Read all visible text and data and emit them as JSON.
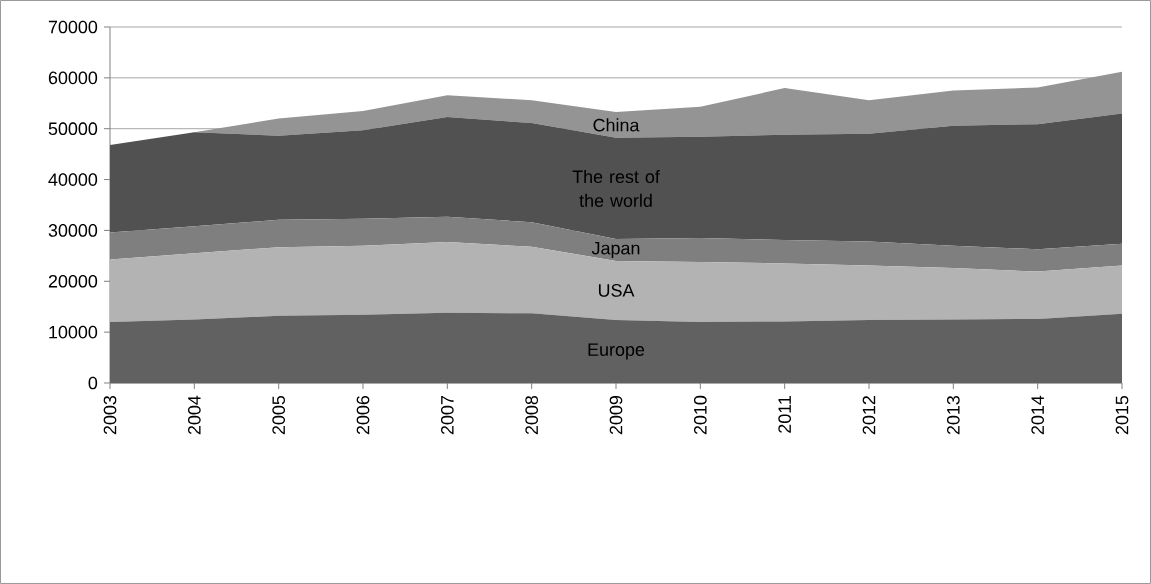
{
  "chart_data": {
    "type": "area",
    "stacked": true,
    "grid": "y",
    "legend": false,
    "categories": [
      "2003",
      "2004",
      "2005",
      "2006",
      "2007",
      "2008",
      "2009",
      "2010",
      "2011",
      "2012",
      "2013",
      "2014",
      "2015"
    ],
    "ylim": [
      0,
      70000
    ],
    "yticks": [
      0,
      10000,
      20000,
      30000,
      40000,
      50000,
      60000,
      70000
    ],
    "series": [
      {
        "name": "Europe",
        "color": "#616161",
        "values": [
          12000,
          12500,
          13200,
          13400,
          13800,
          13700,
          12400,
          12000,
          12100,
          12400,
          12500,
          12600,
          13600
        ]
      },
      {
        "name": "USA",
        "color": "#b3b3b3",
        "values": [
          12300,
          13000,
          13500,
          13600,
          13900,
          13100,
          11600,
          11800,
          11400,
          10700,
          10100,
          9300,
          9500
        ]
      },
      {
        "name": "Japan",
        "color": "#7f7f7f",
        "values": [
          5300,
          5300,
          5400,
          5300,
          5000,
          4800,
          4300,
          4700,
          4600,
          4700,
          4400,
          4400,
          4300
        ]
      },
      {
        "name": "The rest of the world",
        "color": "#515151",
        "values": [
          17200,
          18500,
          16500,
          17400,
          19600,
          19500,
          19900,
          19900,
          20700,
          21200,
          23600,
          24600,
          25600
        ]
      },
      {
        "name": "China",
        "color": "#949494",
        "values": [
          0,
          0,
          3400,
          3800,
          4300,
          4500,
          5100,
          5900,
          9200,
          6600,
          6900,
          7200,
          8200
        ]
      }
    ]
  }
}
